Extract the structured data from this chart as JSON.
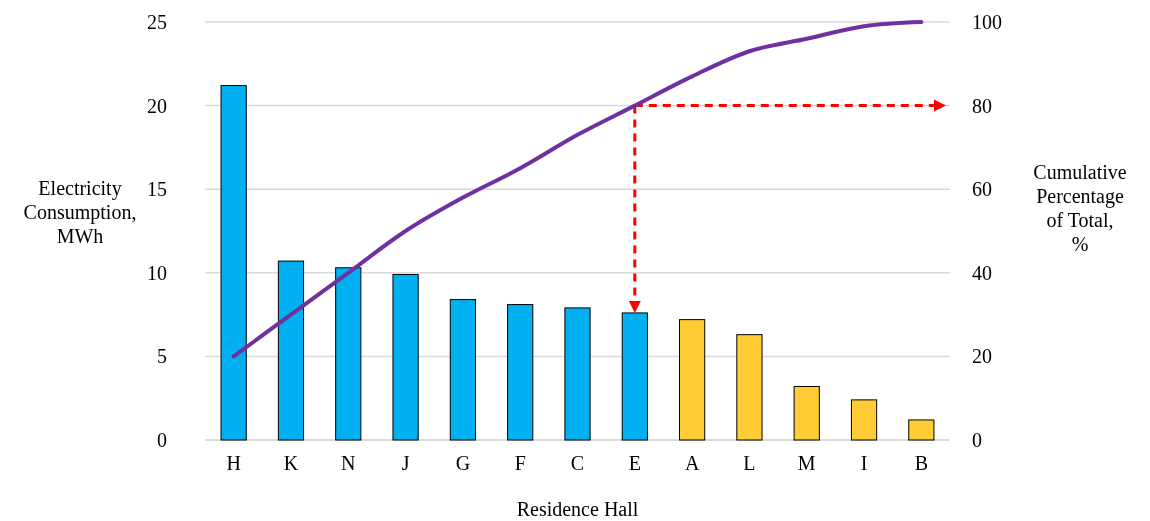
{
  "chart_data": {
    "type": "bar",
    "xlabel": "Residence Hall",
    "ylabel": "Electricity Consumption, MWh",
    "y2label": "Cumulative Percentage of Total, %",
    "categories": [
      "H",
      "K",
      "N",
      "J",
      "G",
      "F",
      "C",
      "E",
      "A",
      "L",
      "M",
      "I",
      "B"
    ],
    "series": [
      {
        "colors": [
          "#00b0f0",
          "#00b0f0",
          "#00b0f0",
          "#00b0f0",
          "#00b0f0",
          "#00b0f0",
          "#00b0f0",
          "#00b0f0",
          "#ffcc33",
          "#ffcc33",
          "#ffcc33",
          "#ffcc33",
          "#ffcc33"
        ],
        "values": [
          21.2,
          10.7,
          10.3,
          9.9,
          8.4,
          8.1,
          7.9,
          7.6,
          7.2,
          6.3,
          3.2,
          2.4,
          1.2
        ]
      },
      {
        "type": "line",
        "axis": "y2",
        "color": "#7030a0",
        "values": [
          20,
          30,
          40,
          50,
          58,
          65,
          73,
          80,
          87,
          93,
          96,
          99,
          100
        ]
      }
    ],
    "ylim": [
      0,
      25
    ],
    "yticks": [
      0,
      5,
      10,
      15,
      20,
      25
    ],
    "y2lim": [
      0,
      100
    ],
    "y2ticks": [
      0,
      20,
      40,
      60,
      80,
      100
    ],
    "grid": "y",
    "marker": "none",
    "line_style": "solid",
    "ref_lines": [
      {
        "axis": "y2",
        "value": 80,
        "color": "#ff0000",
        "line_style": "dashed"
      },
      {
        "axis": "x",
        "value": "E",
        "color": "#ff0000",
        "line_style": "dashed"
      }
    ]
  }
}
